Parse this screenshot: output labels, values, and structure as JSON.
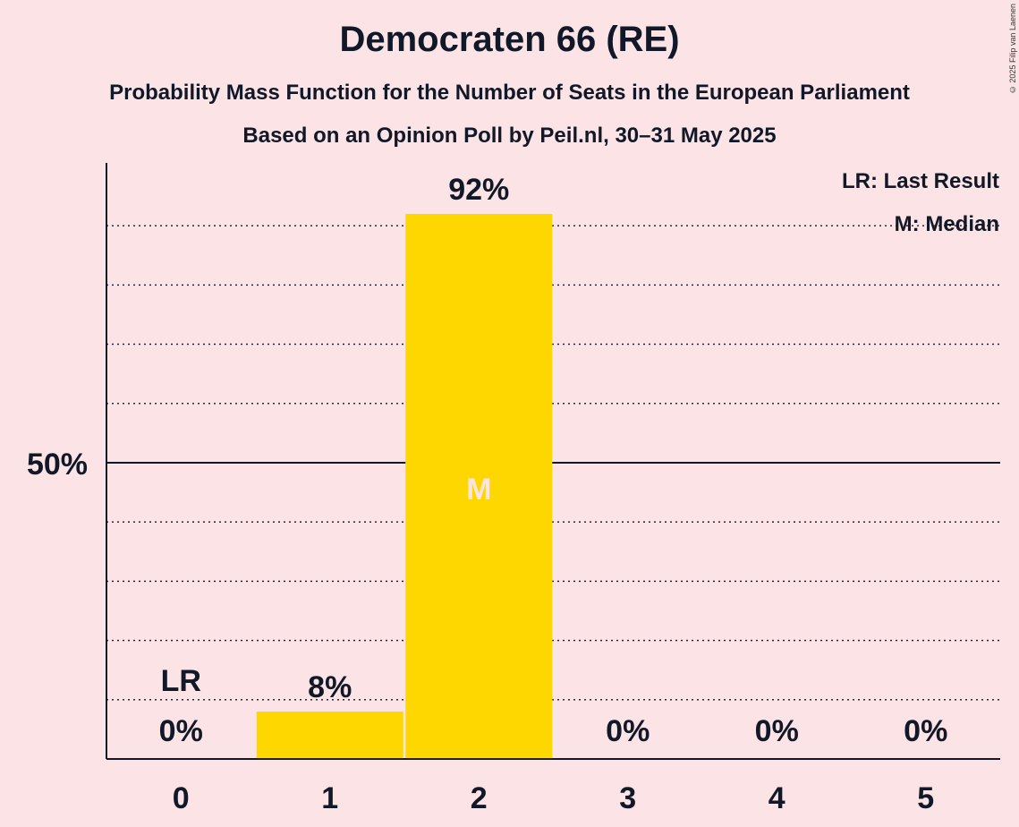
{
  "header": {
    "title": "Democraten 66 (RE)",
    "subtitle": "Probability Mass Function for the Number of Seats in the European Parliament",
    "source": "Based on an Opinion Poll by Peil.nl, 30–31 May 2025",
    "copyright": "© 2025 Filip van Laenen"
  },
  "legend": {
    "last_result": "LR: Last Result",
    "median": "M: Median"
  },
  "colors": {
    "background": "#fce4e6",
    "bar": "#ffd700",
    "text": "#111827",
    "median_label": "#fce4e6"
  },
  "chart_data": {
    "type": "bar",
    "title": "Democraten 66 (RE)",
    "xlabel": "",
    "ylabel": "",
    "categories": [
      "0",
      "1",
      "2",
      "3",
      "4",
      "5"
    ],
    "values": [
      0,
      8,
      92,
      0,
      0,
      0
    ],
    "value_labels": [
      "0%",
      "8%",
      "92%",
      "0%",
      "0%",
      "0%"
    ],
    "ylim": [
      0,
      100
    ],
    "y_tick_label": {
      "value": 50,
      "label": "50%"
    },
    "gridlines": [
      10,
      20,
      30,
      40,
      60,
      70,
      80,
      90
    ],
    "last_result_seat": "0",
    "last_result_label": "LR",
    "median_seat": "2",
    "median_label": "M"
  }
}
